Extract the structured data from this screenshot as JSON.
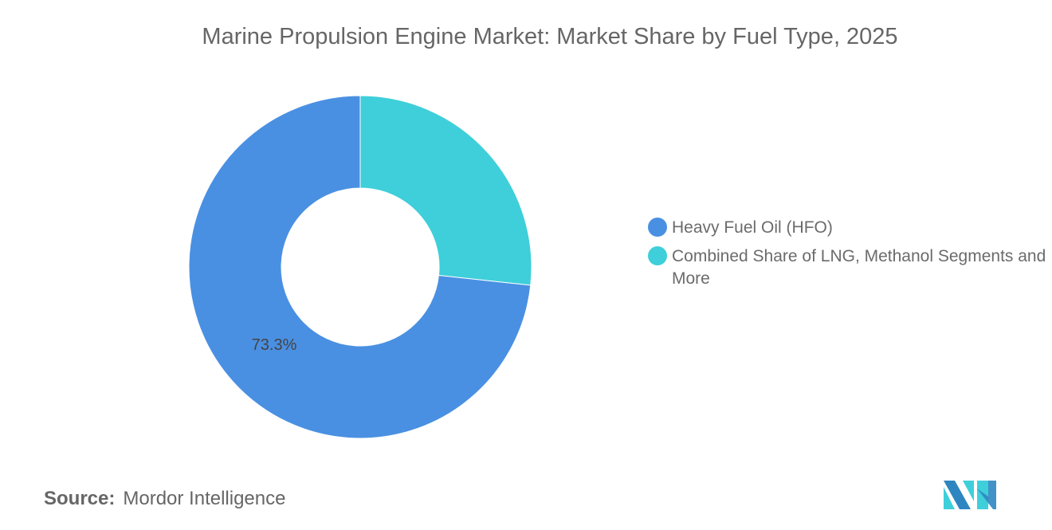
{
  "chart_data": {
    "type": "pie",
    "variant": "donut",
    "title": "Marine Propulsion Engine Market: Market Share by Fuel Type, 2025",
    "categories": [
      "Heavy Fuel Oil (HFO)",
      "Combined Share of LNG, Methanol Segments and More"
    ],
    "values": [
      73.3,
      26.7
    ],
    "data_labels": [
      "73.3%",
      ""
    ],
    "colors": [
      "#4A90E2",
      "#3ECFDA"
    ],
    "legend_position": "right"
  },
  "source": {
    "label": "Source:",
    "value": "Mordor Intelligence"
  },
  "logo": {
    "name": "mordor-intelligence-logo",
    "colors": [
      "#2E86C1",
      "#3ECFDA"
    ]
  }
}
